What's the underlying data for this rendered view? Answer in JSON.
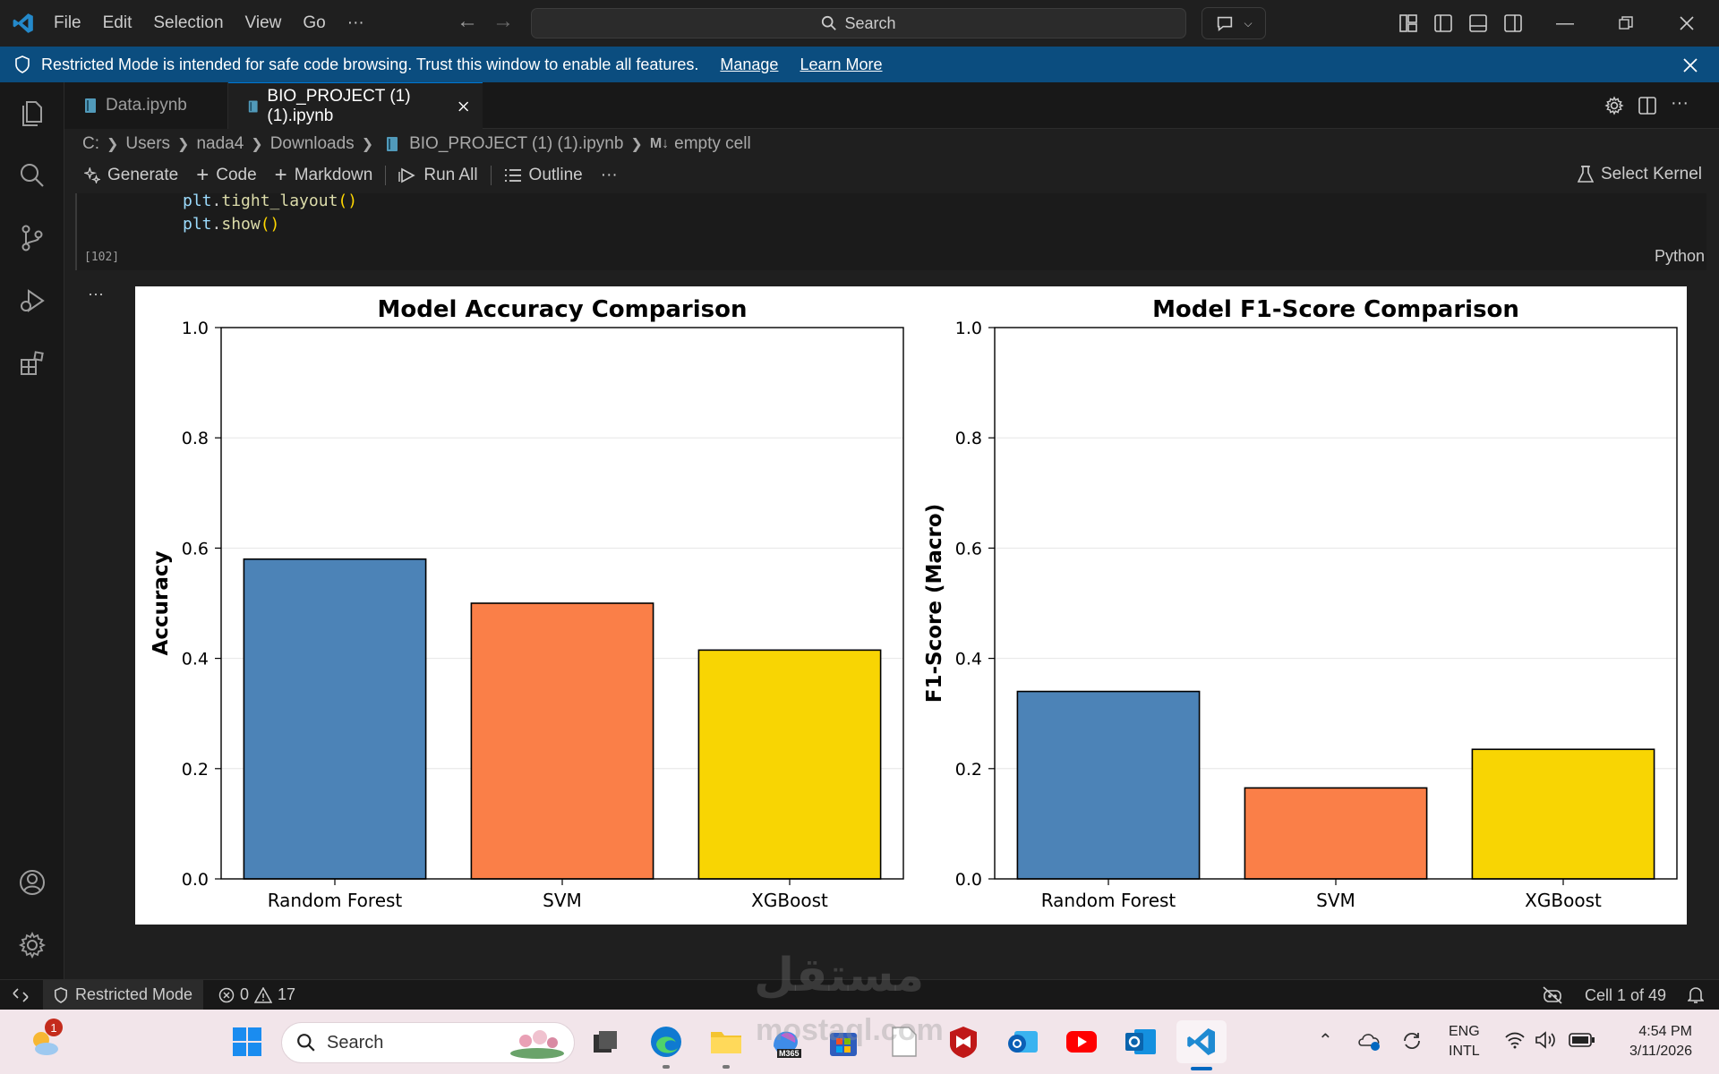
{
  "titlebar": {
    "menu": [
      "File",
      "Edit",
      "Selection",
      "View",
      "Go",
      "···"
    ],
    "search_placeholder": "Search"
  },
  "banner": {
    "message": "Restricted Mode is intended for safe code browsing. Trust this window to enable all features.",
    "manage_link": "Manage",
    "learn_more_link": "Learn More"
  },
  "tabs": [
    {
      "label": "Data.ipynb",
      "active": false
    },
    {
      "label": "BIO_PROJECT (1) (1).ipynb",
      "active": true
    }
  ],
  "breadcrumb": [
    "C:",
    "Users",
    "nada4",
    "Downloads",
    "BIO_PROJECT (1) (1).ipynb",
    "empty cell"
  ],
  "breadcrumb_md_marker": "M↓",
  "notebook_toolbar": {
    "generate": "Generate",
    "code": "Code",
    "markdown": "Markdown",
    "run_all": "Run All",
    "outline": "Outline",
    "more": "···",
    "select_kernel": "Select Kernel"
  },
  "code_cell": {
    "line1": {
      "obj": "plt",
      "dot": ".",
      "fn": "tight_layout",
      "paren": "()"
    },
    "line2": {
      "obj": "plt",
      "dot": ".",
      "fn": "show",
      "paren": "()"
    },
    "execution_count": "[102]",
    "language": "Python",
    "output_menu": "···"
  },
  "chart_data": [
    {
      "type": "bar",
      "title": "Model Accuracy Comparison",
      "xlabel": "",
      "ylabel": "Accuracy",
      "categories": [
        "Random Forest",
        "SVM",
        "XGBoost"
      ],
      "values": [
        0.58,
        0.5,
        0.415
      ],
      "colors": [
        "#4c83b7",
        "#fa7f48",
        "#f8d503"
      ],
      "ylim": [
        0,
        1.0
      ],
      "yticks": [
        "0.0",
        "0.2",
        "0.4",
        "0.6",
        "0.8",
        "1.0"
      ],
      "grid": true
    },
    {
      "type": "bar",
      "title": "Model F1-Score Comparison",
      "xlabel": "",
      "ylabel": "F1-Score (Macro)",
      "categories": [
        "Random Forest",
        "SVM",
        "XGBoost"
      ],
      "values": [
        0.34,
        0.165,
        0.235
      ],
      "colors": [
        "#4c83b7",
        "#fa7f48",
        "#f8d503"
      ],
      "ylim": [
        0,
        1.0
      ],
      "yticks": [
        "0.0",
        "0.2",
        "0.4",
        "0.6",
        "0.8",
        "1.0"
      ],
      "grid": true
    }
  ],
  "statusbar": {
    "restricted_mode": "Restricted Mode",
    "errors": "0",
    "warnings": "17",
    "cell_position": "Cell 1 of 49"
  },
  "taskbar": {
    "search_placeholder": "Search",
    "weather_badge": "1",
    "lang_line1": "ENG",
    "lang_line2": "INTL",
    "time": "4:54 PM",
    "date": "3/11/2026",
    "m365_label": "M365"
  },
  "watermark": {
    "text": "مستقل",
    "sub": "mostaql.com"
  },
  "colors": {
    "accent": "#0078d4",
    "banner_bg": "#0b4d7f",
    "editor_bg": "#1f1f1f"
  }
}
